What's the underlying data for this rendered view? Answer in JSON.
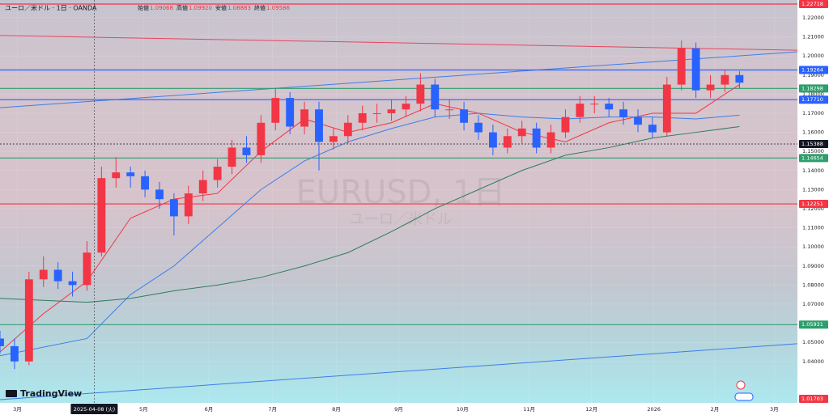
{
  "header": {
    "symbol": "ユーロ／米ドル · 1日 · OANDA",
    "ohlc": [
      {
        "label": "始値",
        "value": "1.09068"
      },
      {
        "label": "高値",
        "value": "1.09920"
      },
      {
        "label": "安値",
        "value": "1.08883"
      },
      {
        "label": "終値",
        "value": "1.09586"
      }
    ]
  },
  "watermark": {
    "title": "EURUSD, 1日",
    "subtitle": "ユーロ／米ドル"
  },
  "logo": "TradingView",
  "chart_data": {
    "type": "candlestick",
    "xlim": [
      0,
      55
    ],
    "ylim": [
      1.0183,
      1.2293
    ],
    "xticks": [
      {
        "value": 1.2,
        "label": "3月"
      },
      {
        "value": 9.9,
        "label": "5月"
      },
      {
        "value": 14.4,
        "label": "6月"
      },
      {
        "value": 18.8,
        "label": "7月"
      },
      {
        "value": 23.2,
        "label": "8月"
      },
      {
        "value": 27.5,
        "label": "9月"
      },
      {
        "value": 31.9,
        "label": "10月"
      },
      {
        "value": 36.5,
        "label": "11月"
      },
      {
        "value": 40.8,
        "label": "12月"
      },
      {
        "value": 45.1,
        "label": "2026"
      },
      {
        "value": 49.3,
        "label": "2月"
      },
      {
        "value": 53.4,
        "label": "3月"
      }
    ],
    "yticks": [
      {
        "value": 1.04,
        "label": "1.04000"
      },
      {
        "value": 1.05,
        "label": "1.05000"
      },
      {
        "value": 1.06,
        "label": "1.06000"
      },
      {
        "value": 1.07,
        "label": "1.07000"
      },
      {
        "value": 1.08,
        "label": "1.08000"
      },
      {
        "value": 1.09,
        "label": "1.09000"
      },
      {
        "value": 1.1,
        "label": "1.10000"
      },
      {
        "value": 1.11,
        "label": "1.11000"
      },
      {
        "value": 1.12,
        "label": "1.12000"
      },
      {
        "value": 1.13,
        "label": "1.13000"
      },
      {
        "value": 1.14,
        "label": "1.14000"
      },
      {
        "value": 1.15,
        "label": "1.15000"
      },
      {
        "value": 1.16,
        "label": "1.16000"
      },
      {
        "value": 1.17,
        "label": "1.17000"
      },
      {
        "value": 1.18,
        "label": "1.18000"
      },
      {
        "value": 1.19,
        "label": "1.19000"
      },
      {
        "value": 1.2,
        "label": "1.20000"
      },
      {
        "value": 1.21,
        "label": "1.21000"
      },
      {
        "value": 1.22,
        "label": "1.22000"
      }
    ],
    "up_color": "#f23645",
    "down_color": "#2962ff",
    "candles": {
      "x": [
        0,
        1,
        2,
        3,
        4,
        5,
        6,
        7,
        8,
        9,
        10,
        11,
        12,
        13,
        14,
        15,
        16,
        17,
        18,
        19,
        20,
        21,
        22,
        23,
        24,
        25,
        26,
        27,
        28,
        29,
        30,
        31,
        32,
        33,
        34,
        35,
        36,
        37,
        38,
        39,
        40,
        41,
        42,
        43,
        44,
        45,
        46,
        47,
        48,
        49,
        50,
        51
      ],
      "open": [
        1.052,
        1.048,
        1.04,
        1.083,
        1.088,
        1.082,
        1.08,
        1.097,
        1.136,
        1.139,
        1.137,
        1.13,
        1.125,
        1.116,
        1.128,
        1.135,
        1.142,
        1.152,
        1.148,
        1.165,
        1.178,
        1.163,
        1.172,
        1.155,
        1.158,
        1.165,
        1.17,
        1.17,
        1.172,
        1.175,
        1.185,
        1.172,
        1.172,
        1.165,
        1.16,
        1.152,
        1.158,
        1.162,
        1.152,
        1.16,
        1.168,
        1.175,
        1.175,
        1.172,
        1.168,
        1.164,
        1.16,
        1.185,
        1.204,
        1.182,
        1.185,
        1.19
      ],
      "high": [
        1.056,
        1.052,
        1.087,
        1.095,
        1.092,
        1.087,
        1.103,
        1.142,
        1.147,
        1.142,
        1.14,
        1.134,
        1.128,
        1.132,
        1.14,
        1.146,
        1.156,
        1.158,
        1.169,
        1.183,
        1.181,
        1.176,
        1.176,
        1.162,
        1.169,
        1.174,
        1.175,
        1.177,
        1.179,
        1.191,
        1.188,
        1.177,
        1.176,
        1.169,
        1.164,
        1.162,
        1.166,
        1.165,
        1.164,
        1.172,
        1.179,
        1.179,
        1.178,
        1.176,
        1.172,
        1.168,
        1.189,
        1.208,
        1.207,
        1.19,
        1.193,
        1.192
      ],
      "low": [
        1.044,
        1.036,
        1.038,
        1.079,
        1.078,
        1.074,
        1.077,
        1.095,
        1.131,
        1.131,
        1.126,
        1.12,
        1.106,
        1.112,
        1.124,
        1.131,
        1.138,
        1.144,
        1.144,
        1.161,
        1.159,
        1.159,
        1.14,
        1.151,
        1.154,
        1.161,
        1.165,
        1.166,
        1.168,
        1.171,
        1.168,
        1.167,
        1.161,
        1.156,
        1.148,
        1.149,
        1.154,
        1.149,
        1.149,
        1.157,
        1.165,
        1.17,
        1.168,
        1.164,
        1.16,
        1.157,
        1.158,
        1.182,
        1.178,
        1.178,
        1.181,
        1.183
      ],
      "close": [
        1.048,
        1.04,
        1.083,
        1.088,
        1.082,
        1.08,
        1.097,
        1.136,
        1.139,
        1.137,
        1.13,
        1.125,
        1.116,
        1.128,
        1.135,
        1.142,
        1.152,
        1.148,
        1.165,
        1.178,
        1.163,
        1.172,
        1.155,
        1.158,
        1.165,
        1.17,
        1.17,
        1.172,
        1.175,
        1.185,
        1.172,
        1.172,
        1.165,
        1.16,
        1.152,
        1.158,
        1.162,
        1.152,
        1.16,
        1.168,
        1.175,
        1.175,
        1.172,
        1.168,
        1.164,
        1.16,
        1.185,
        1.204,
        1.182,
        1.185,
        1.19,
        1.186
      ]
    },
    "series": [
      {
        "color": "#f23645",
        "x": [
          0,
          3,
          6,
          9,
          12,
          15,
          18,
          21,
          24,
          27,
          30,
          33,
          36,
          39,
          42,
          45,
          48,
          51
        ],
        "values": [
          1.045,
          1.065,
          1.082,
          1.115,
          1.125,
          1.128,
          1.15,
          1.167,
          1.16,
          1.165,
          1.175,
          1.17,
          1.16,
          1.155,
          1.165,
          1.17,
          1.17,
          1.185
        ]
      },
      {
        "color": "#3d7ee8",
        "x": [
          0,
          6,
          9,
          12,
          15,
          18,
          21,
          24,
          27,
          30,
          33,
          36,
          39,
          42,
          45,
          48,
          51
        ],
        "values": [
          1.043,
          1.052,
          1.075,
          1.09,
          1.11,
          1.13,
          1.145,
          1.155,
          1.162,
          1.168,
          1.17,
          1.168,
          1.167,
          1.168,
          1.168,
          1.167,
          1.169
        ]
      },
      {
        "color": "#2e7d5b",
        "x": [
          0,
          6,
          9,
          12,
          15,
          18,
          21,
          24,
          27,
          30,
          33,
          36,
          39,
          42,
          45,
          48,
          51
        ],
        "values": [
          1.073,
          1.071,
          1.073,
          1.077,
          1.08,
          1.084,
          1.09,
          1.097,
          1.108,
          1.12,
          1.13,
          1.14,
          1.148,
          1.152,
          1.157,
          1.16,
          1.163
        ]
      }
    ],
    "trendlines": [
      {
        "color": "#e8455f",
        "x": [
          0,
          55
        ],
        "values": [
          1.2107,
          1.203
        ]
      },
      {
        "color": "#3d7ee8",
        "x": [
          0,
          55
        ],
        "values": [
          1.1729,
          1.2022
        ]
      },
      {
        "color": "#3d7ee8",
        "x": [
          0,
          55
        ],
        "values": [
          1.02,
          1.0493
        ]
      }
    ],
    "levels": [
      {
        "price": 1.22718,
        "color": "#f23645"
      },
      {
        "price": 1.19264,
        "color": "#2962ff"
      },
      {
        "price": 1.18298,
        "color": "#2e9e6e"
      },
      {
        "price": 1.1771,
        "label": "1.17710",
        "color": "#2962ff"
      },
      {
        "price": 1.15388,
        "color": "#131722",
        "dotted": true
      },
      {
        "price": 1.14654,
        "color": "#2e9e6e"
      },
      {
        "price": 1.12251,
        "color": "#f23645"
      },
      {
        "price": 1.05931,
        "color": "#2e9e6e"
      },
      {
        "price": 1.01703,
        "color": "#f23645",
        "label_only": true
      }
    ],
    "crosshair": {
      "x": 6.5,
      "label": "2025-04-08 (火)"
    }
  }
}
